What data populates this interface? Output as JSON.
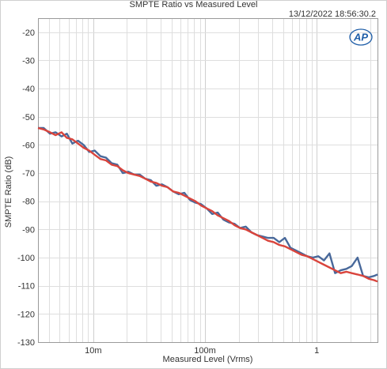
{
  "title": "SMPTE Ratio vs Measured Level",
  "timestamp": "13/12/2022 18:56:30.2",
  "logo_text": "AP",
  "colors": {
    "series_blue": "#48689a",
    "series_red": "#d9443c",
    "grid": "#dedede",
    "axis": "#9a9a9a",
    "logo": "#1f5ea8"
  },
  "chart_data": {
    "type": "line",
    "title": "SMPTE Ratio vs Measured Level",
    "xlabel": "Measured Level (Vrms)",
    "ylabel": "SMPTE Ratio (dB)",
    "x_scale": "log",
    "xlim": [
      0.0032,
      3.5
    ],
    "ylim": [
      -130,
      -15
    ],
    "x_ticks": [
      {
        "value": 0.01,
        "label": "10m"
      },
      {
        "value": 0.1,
        "label": "100m"
      },
      {
        "value": 1,
        "label": "1"
      }
    ],
    "y_ticks": [
      -20,
      -30,
      -40,
      -50,
      -60,
      -70,
      -80,
      -90,
      -100,
      -110,
      -120,
      -130
    ],
    "grid": true,
    "series": [
      {
        "color": "#48689a",
        "x": [
          0.0032,
          0.0036,
          0.0041,
          0.0046,
          0.0052,
          0.0058,
          0.0065,
          0.0073,
          0.0082,
          0.0092,
          0.0103,
          0.0116,
          0.013,
          0.0146,
          0.0164,
          0.0184,
          0.0206,
          0.0232,
          0.026,
          0.0292,
          0.0327,
          0.0367,
          0.0412,
          0.0462,
          0.0519,
          0.0582,
          0.0653,
          0.0733,
          0.0822,
          0.0922,
          0.1035,
          0.116,
          0.13,
          0.146,
          0.164,
          0.184,
          0.206,
          0.232,
          0.26,
          0.292,
          0.327,
          0.367,
          0.412,
          0.462,
          0.519,
          0.582,
          0.653,
          0.733,
          0.822,
          0.922,
          1.035,
          1.16,
          1.3,
          1.46,
          1.64,
          1.84,
          2.06,
          2.32,
          2.6,
          2.92,
          3.27,
          3.5
        ],
        "y": [
          -54,
          -54,
          -56,
          -55.5,
          -57,
          -56,
          -59.5,
          -58.5,
          -60,
          -62.5,
          -62,
          -64,
          -64.5,
          -66.5,
          -67,
          -70,
          -69.5,
          -70.5,
          -70.5,
          -72,
          -72.5,
          -74.5,
          -74,
          -75,
          -76.5,
          -77.5,
          -77,
          -79.5,
          -80.5,
          -81,
          -82.5,
          -84.5,
          -84,
          -86.5,
          -87.5,
          -88,
          -89.5,
          -89,
          -91,
          -92,
          -92.5,
          -93,
          -93,
          -94.5,
          -93,
          -96.5,
          -97.5,
          -98.5,
          -99.5,
          -100,
          -99.5,
          -101,
          -98.5,
          -105.5,
          -104.5,
          -104,
          -103,
          -100,
          -106.5,
          -107,
          -106.5,
          -106
        ]
      },
      {
        "color": "#d9443c",
        "x": [
          0.0032,
          0.0036,
          0.0041,
          0.0046,
          0.0052,
          0.0058,
          0.0065,
          0.0073,
          0.0082,
          0.0092,
          0.0103,
          0.0116,
          0.013,
          0.0146,
          0.0164,
          0.0184,
          0.0206,
          0.0232,
          0.026,
          0.0292,
          0.0327,
          0.0367,
          0.0412,
          0.0462,
          0.0519,
          0.0582,
          0.0653,
          0.0733,
          0.0822,
          0.0922,
          0.1035,
          0.116,
          0.13,
          0.146,
          0.164,
          0.184,
          0.206,
          0.232,
          0.26,
          0.292,
          0.327,
          0.367,
          0.412,
          0.462,
          0.519,
          0.582,
          0.653,
          0.733,
          0.822,
          0.922,
          1.035,
          1.16,
          1.3,
          1.46,
          1.64,
          1.84,
          2.06,
          2.32,
          2.6,
          2.92,
          3.27,
          3.5
        ],
        "y": [
          -54,
          -54.5,
          -55.5,
          -56.5,
          -55.5,
          -57.5,
          -58,
          -59.5,
          -61,
          -62,
          -63.5,
          -65,
          -65.5,
          -67,
          -67.5,
          -69,
          -70,
          -70.5,
          -71,
          -72,
          -73,
          -73.5,
          -74.5,
          -75,
          -76.5,
          -77,
          -78,
          -79,
          -80,
          -81.5,
          -82.5,
          -83.5,
          -85,
          -86,
          -87,
          -88.5,
          -89.5,
          -90,
          -91,
          -92,
          -93,
          -94,
          -94.5,
          -95.5,
          -96,
          -97,
          -98,
          -99,
          -99.5,
          -100.5,
          -101.5,
          -102.5,
          -103.5,
          -104.5,
          -105.5,
          -105,
          -105.5,
          -106,
          -106.5,
          -107.5,
          -108,
          -108.5
        ]
      }
    ]
  }
}
